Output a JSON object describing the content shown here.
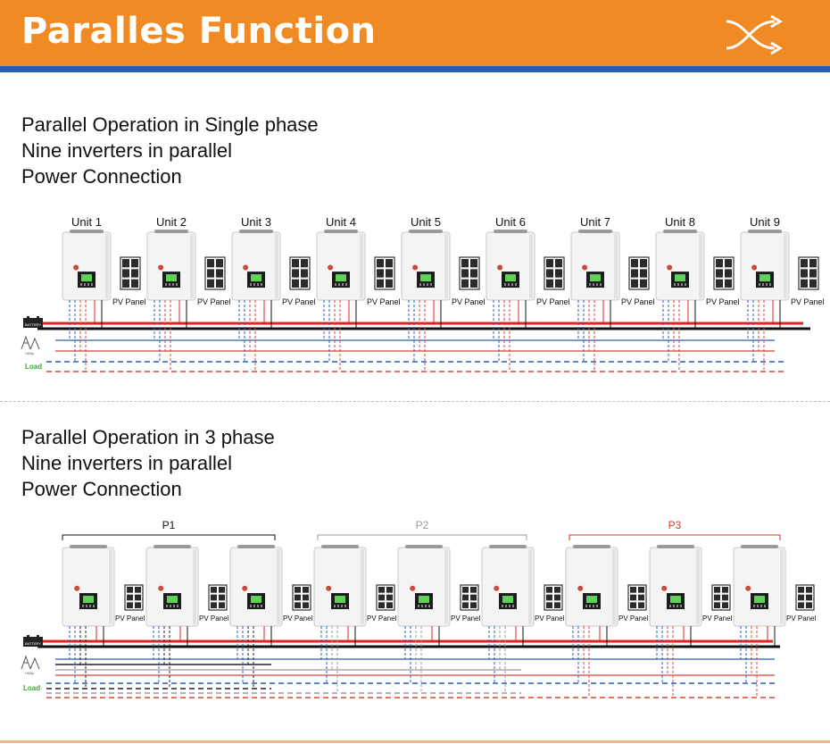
{
  "header": {
    "title": "Paralles Function",
    "icon": "shuffle-arrows-icon",
    "bg_color": "#f08a24",
    "stripe_color": "#1f63b0"
  },
  "section1": {
    "lines": [
      "Parallel Operation in Single phase",
      "Nine inverters in parallel",
      "Power Connection"
    ],
    "units": [
      "Unit 1",
      "Unit 2",
      "Unit 3",
      "Unit 4",
      "Unit 5",
      "Unit 6",
      "Unit 7",
      "Unit 8",
      "Unit 9"
    ],
    "pv_label": "PV Panel",
    "battery_label": "BATTERY",
    "grid_label": "Utility",
    "load_label": "Load"
  },
  "section2": {
    "lines": [
      "Parallel Operation in 3 phase",
      "Nine inverters in parallel",
      "Power Connection"
    ],
    "phases": [
      {
        "label": "P1",
        "color": "#111111"
      },
      {
        "label": "P2",
        "color": "#9a9a9a"
      },
      {
        "label": "P3",
        "color": "#d23a2a"
      }
    ],
    "pv_label": "PV Panel",
    "battery_label": "BATTERY",
    "grid_label": "Utility",
    "load_label": "Load"
  },
  "colors": {
    "bus_red": "#e02424",
    "bus_black": "#111111",
    "wire_blue": "#2a5fb0",
    "wire_red": "#d8463a",
    "load_green": "#3aa836"
  }
}
